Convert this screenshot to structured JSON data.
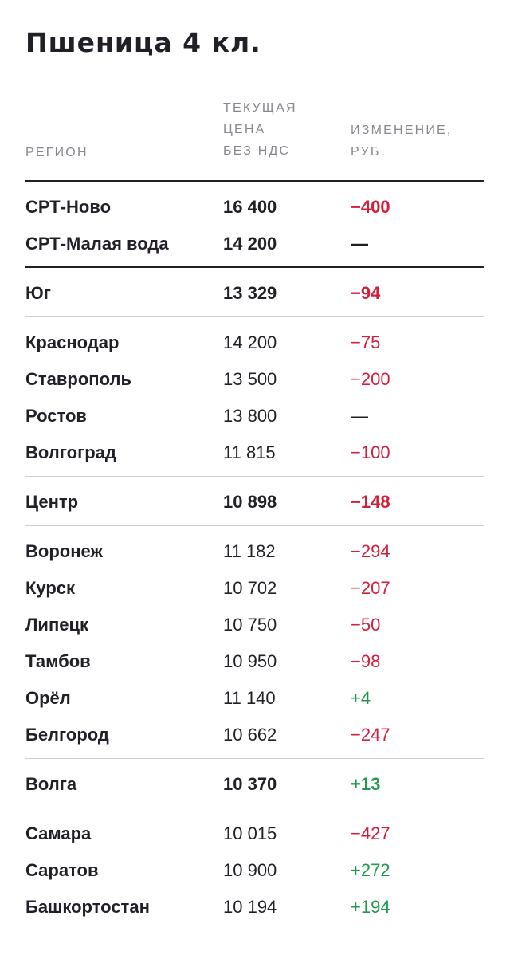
{
  "title": "Пшеница 4 кл.",
  "headers": {
    "region": "РЕГИОН",
    "price_lines": [
      "ТЕКУЩАЯ",
      "ЦЕНА",
      "БЕЗ НДС"
    ],
    "change_lines": [
      "ИЗМЕНЕНИЕ,",
      "РУБ."
    ]
  },
  "colors": {
    "negative": "#d21f3c",
    "positive": "#1f9a4c",
    "neutral": "#231f27"
  },
  "rows": [
    {
      "region": "СРТ-Ново",
      "price": "16 400",
      "change": "−400",
      "trend": "neg",
      "bold": true
    },
    {
      "region": "СРТ-Малая вода",
      "price": "14 200",
      "change": "—",
      "trend": "neu",
      "bold": true
    },
    {
      "region": "Юг",
      "price": "13 329",
      "change": "−94",
      "trend": "neg",
      "bold": true
    },
    {
      "region": "Краснодар",
      "price": "14 200",
      "change": "−75",
      "trend": "neg",
      "bold": false
    },
    {
      "region": "Ставрополь",
      "price": "13 500",
      "change": "−200",
      "trend": "neg",
      "bold": false
    },
    {
      "region": "Ростов",
      "price": "13 800",
      "change": "—",
      "trend": "neu",
      "bold": false
    },
    {
      "region": "Волгоград",
      "price": "11 815",
      "change": "−100",
      "trend": "neg",
      "bold": false
    },
    {
      "region": "Центр",
      "price": "10 898",
      "change": "−148",
      "trend": "neg",
      "bold": true
    },
    {
      "region": "Воронеж",
      "price": "11 182",
      "change": "−294",
      "trend": "neg",
      "bold": false
    },
    {
      "region": "Курск",
      "price": "10 702",
      "change": "−207",
      "trend": "neg",
      "bold": false
    },
    {
      "region": "Липецк",
      "price": "10 750",
      "change": "−50",
      "trend": "neg",
      "bold": false
    },
    {
      "region": "Тамбов",
      "price": "10 950",
      "change": "−98",
      "trend": "neg",
      "bold": false
    },
    {
      "region": "Орёл",
      "price": "11 140",
      "change": "+4",
      "trend": "pos",
      "bold": false
    },
    {
      "region": "Белгород",
      "price": "10 662",
      "change": "−247",
      "trend": "neg",
      "bold": false
    },
    {
      "region": "Волга",
      "price": "10 370",
      "change": "+13",
      "trend": "pos",
      "bold": true
    },
    {
      "region": "Самара",
      "price": "10 015",
      "change": "−427",
      "trend": "neg",
      "bold": false
    },
    {
      "region": "Саратов",
      "price": "10 900",
      "change": "+272",
      "trend": "pos",
      "bold": false
    },
    {
      "region": "Башкортостан",
      "price": "10 194",
      "change": "+194",
      "trend": "pos",
      "bold": false
    }
  ]
}
